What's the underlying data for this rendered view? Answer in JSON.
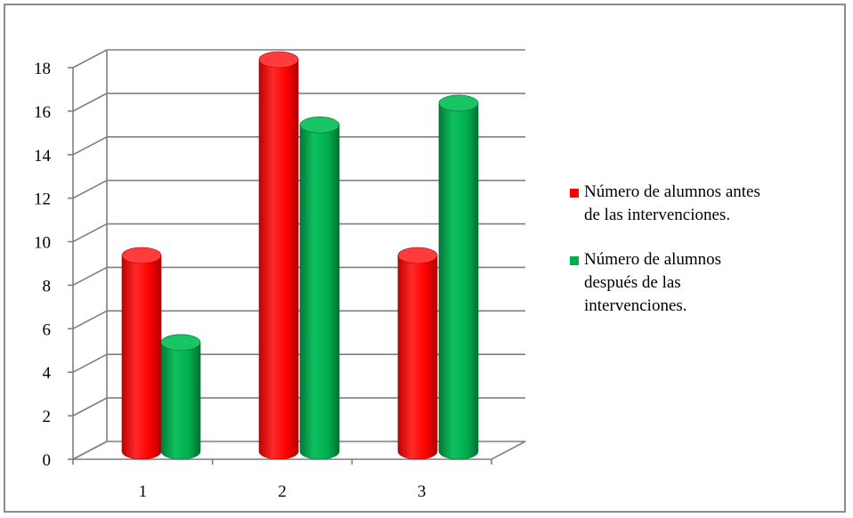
{
  "chart_data": {
    "type": "bar",
    "title": "",
    "xlabel": "",
    "ylabel": "",
    "categories": [
      "1",
      "2",
      "3"
    ],
    "ylim": [
      0,
      18
    ],
    "yticks": [
      0,
      2,
      4,
      6,
      8,
      10,
      12,
      14,
      16,
      18
    ],
    "grid": true,
    "legend_position": "right",
    "series": [
      {
        "name": "Número de alumnos antes de las intervenciones.",
        "values": [
          9,
          18,
          9
        ],
        "color": "#ff0000"
      },
      {
        "name": "Número de alumnos después de las intervenciones.",
        "values": [
          5,
          15,
          16
        ],
        "color": "#00b050"
      }
    ]
  },
  "legend": {
    "items": [
      {
        "lines": [
          "Número de alumnos antes",
          "de las intervenciones."
        ],
        "color": "#ff0000"
      },
      {
        "lines": [
          "Número de alumnos",
          "después de las",
          "intervenciones."
        ],
        "color": "#00b050"
      }
    ]
  }
}
